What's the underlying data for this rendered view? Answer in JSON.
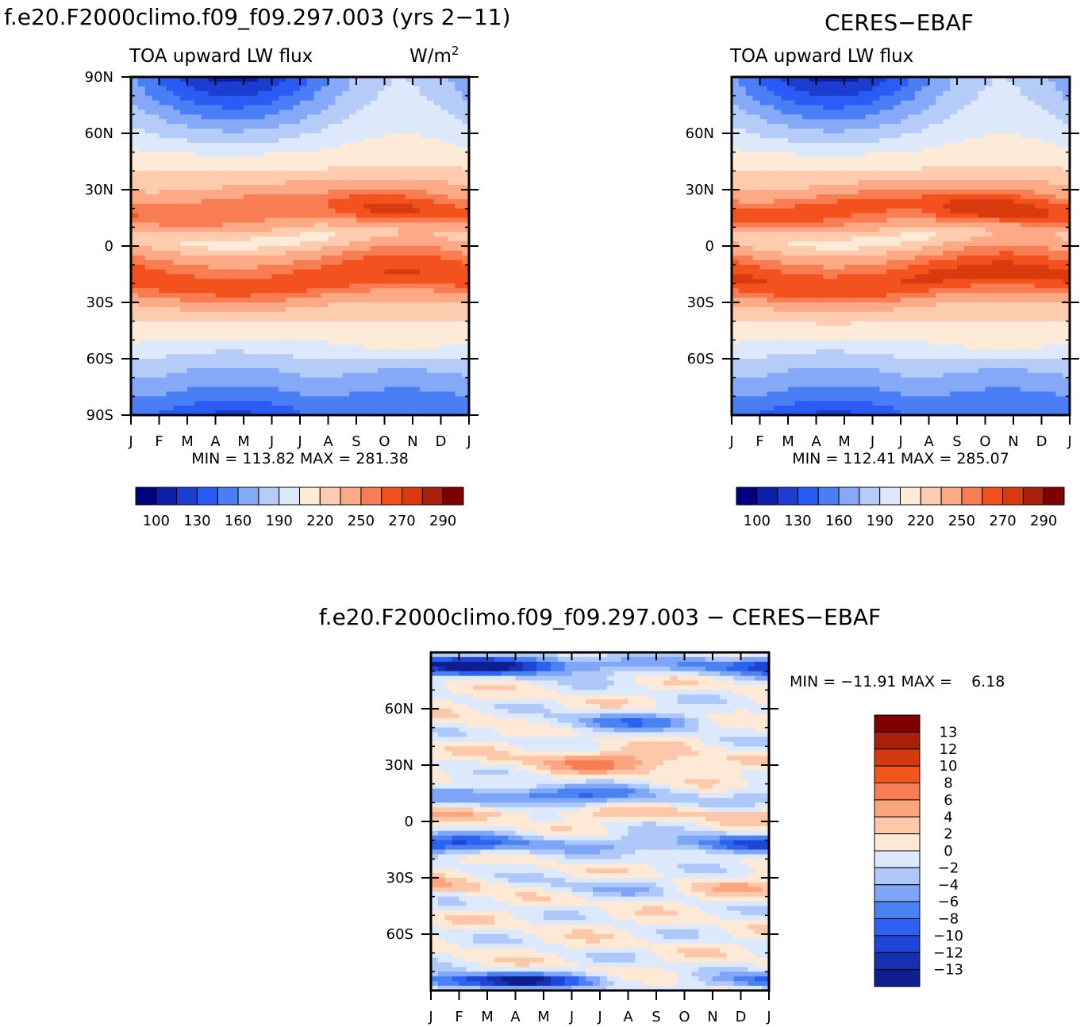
{
  "page": {
    "width": 1366,
    "height": 1294
  },
  "colors": {
    "levels": [
      "#00007f",
      "#0d1fa7",
      "#1b3dd0",
      "#2a5cf5",
      "#4a7ef5",
      "#86a9f7",
      "#b5ccf9",
      "#dde9fb",
      "#fdebd8",
      "#fdcbae",
      "#fbaa85",
      "#f97d52",
      "#f3521f",
      "#d93a0e",
      "#a9200a",
      "#7f0000"
    ],
    "diff_levels": [
      "#0d1f8f",
      "#1630b0",
      "#1f45d6",
      "#2d62f0",
      "#4b82f2",
      "#7fa6f6",
      "#aec8f9",
      "#dce8fb",
      "#fde9d6",
      "#fdc7aa",
      "#fba57f",
      "#f97d52",
      "#f0571f",
      "#d53a0e",
      "#a9200a",
      "#7f0000"
    ]
  },
  "chart_data": [
    {
      "type": "heatmap",
      "name": "model",
      "title": "f.e20.F2000climo.f09_f09.297.003 (yrs 2−11)",
      "subtitle_left": "TOA upward LW flux",
      "subtitle_right_base": "W/m",
      "subtitle_right_sup": "2",
      "y_ticks": [
        "90N",
        "60N",
        "30N",
        "0",
        "30S",
        "60S",
        "90S"
      ],
      "y_tick_values": [
        90,
        60,
        30,
        0,
        -30,
        -60,
        -90
      ],
      "ylim": [
        -90,
        90
      ],
      "x_ticks": [
        "J",
        "F",
        "M",
        "A",
        "M",
        "J",
        "J",
        "A",
        "S",
        "O",
        "N",
        "D",
        "J"
      ],
      "stats": "MIN = 113.82 MAX = 281.38",
      "min": 113.82,
      "max": 281.38,
      "colorbar_levels": [
        100,
        115,
        130,
        145,
        160,
        175,
        190,
        205,
        220,
        235,
        250,
        260,
        270,
        280,
        290
      ],
      "colorbar_labels": [
        "100",
        "130",
        "160",
        "190",
        "220",
        "250",
        "270",
        "290"
      ],
      "nh_subtropics_peak": 270,
      "sh_subtropics_peak": 278,
      "equator_value": 228
    },
    {
      "type": "heatmap",
      "name": "obs",
      "title": "CERES−EBAF",
      "subtitle_left": "TOA upward LW flux",
      "y_ticks": [
        "60N",
        "30N",
        "0",
        "30S",
        "60S"
      ],
      "y_tick_values": [
        60,
        30,
        0,
        -30,
        -60
      ],
      "ylim": [
        -90,
        90
      ],
      "x_ticks": [
        "J",
        "F",
        "M",
        "A",
        "M",
        "J",
        "J",
        "A",
        "S",
        "O",
        "N",
        "D",
        "J"
      ],
      "stats": "MIN = 112.41 MAX = 285.07",
      "min": 112.41,
      "max": 285.07,
      "colorbar_levels": [
        100,
        115,
        130,
        145,
        160,
        175,
        190,
        205,
        220,
        235,
        250,
        260,
        270,
        280,
        290
      ],
      "colorbar_labels": [
        "100",
        "130",
        "160",
        "190",
        "220",
        "250",
        "270",
        "290"
      ],
      "nh_subtropics_peak": 276,
      "sh_subtropics_peak": 282,
      "equator_value": 226
    },
    {
      "type": "heatmap",
      "name": "difference",
      "title": "f.e20.F2000climo.f09_f09.297.003 − CERES−EBAF",
      "y_ticks": [
        "60N",
        "30N",
        "0",
        "30S",
        "60S"
      ],
      "y_tick_values": [
        60,
        30,
        0,
        -30,
        -60
      ],
      "ylim": [
        -90,
        90
      ],
      "x_ticks": [
        "J",
        "F",
        "M",
        "A",
        "M",
        "J",
        "J",
        "A",
        "S",
        "O",
        "N",
        "D",
        "J"
      ],
      "stats": "MIN = −11.91 MAX =    6.18",
      "min": -11.91,
      "max": 6.18,
      "colorbar_levels": [
        -13,
        -12,
        -10,
        -8,
        -6,
        -4,
        -2,
        0,
        2,
        4,
        6,
        8,
        10,
        12,
        13
      ],
      "colorbar_labels": [
        "13",
        "12",
        "10",
        "8",
        "6",
        "4",
        "2",
        "0",
        "−2",
        "−4",
        "−6",
        "−8",
        "−10",
        "−12",
        "−13"
      ]
    }
  ]
}
